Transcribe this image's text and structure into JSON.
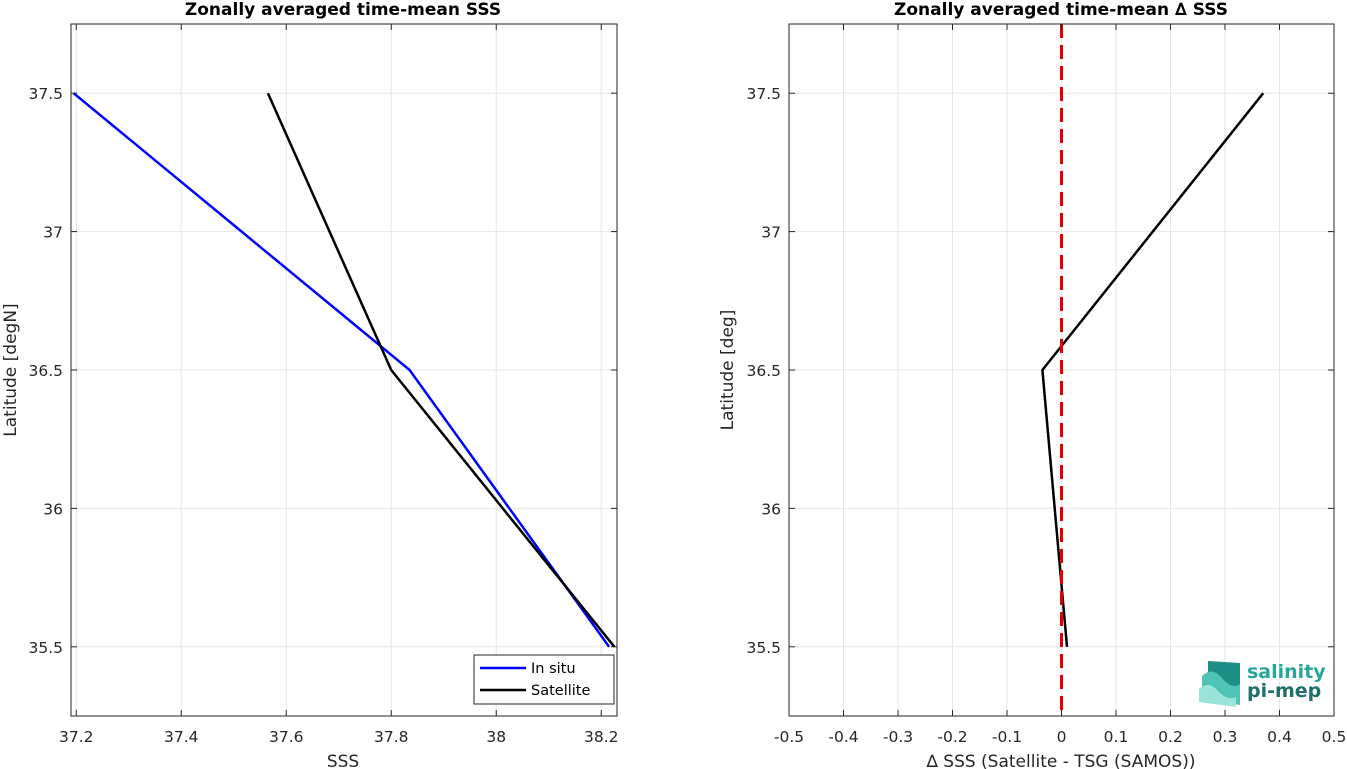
{
  "chart_data": [
    {
      "type": "line",
      "title": "Zonally averaged time-mean SSS",
      "xlabel": "SSS",
      "ylabel": "Latitude [degN]",
      "xlim": [
        37.19,
        38.23
      ],
      "ylim": [
        35.25,
        37.75
      ],
      "xticks": [
        37.2,
        37.4,
        37.6,
        37.8,
        38.0,
        38.2
      ],
      "xtick_labels": [
        "37.2",
        "37.4",
        "37.6",
        "37.8",
        "38",
        "38.2"
      ],
      "yticks": [
        35.5,
        36.0,
        36.5,
        37.0,
        37.5
      ],
      "ytick_labels": [
        "35.5",
        "36",
        "36.5",
        "37",
        "37.5"
      ],
      "grid": true,
      "legend_position": "bottom-right",
      "series": [
        {
          "name": "In situ",
          "color": "#0000ff",
          "points": [
            [
              37.195,
              37.5
            ],
            [
              37.835,
              36.5
            ],
            [
              38.215,
              35.5
            ]
          ]
        },
        {
          "name": "Satellite",
          "color": "#000000",
          "points": [
            [
              37.565,
              37.5
            ],
            [
              37.8,
              36.5
            ],
            [
              38.225,
              35.5
            ]
          ]
        }
      ]
    },
    {
      "type": "line",
      "title": "Zonally averaged time-mean ∆ SSS",
      "xlabel": "∆ SSS (Satellite - TSG (SAMOS))",
      "ylabel": "Latitude [deg]",
      "xlim": [
        -0.5,
        0.5
      ],
      "ylim": [
        35.25,
        37.75
      ],
      "xticks": [
        -0.5,
        -0.4,
        -0.3,
        -0.2,
        -0.1,
        0,
        0.1,
        0.2,
        0.3,
        0.4,
        0.5
      ],
      "xtick_labels": [
        "-0.5",
        "-0.4",
        "-0.3",
        "-0.2",
        "-0.1",
        "0",
        "0.1",
        "0.2",
        "0.3",
        "0.4",
        "0.5"
      ],
      "yticks": [
        35.5,
        36.0,
        36.5,
        37.0,
        37.5
      ],
      "ytick_labels": [
        "35.5",
        "36",
        "36.5",
        "37",
        "37.5"
      ],
      "grid": true,
      "reference_line": {
        "x": 0,
        "color": "#e00000",
        "style": "dashed"
      },
      "series": [
        {
          "color": "#000000",
          "points": [
            [
              0.37,
              37.5
            ],
            [
              -0.035,
              36.5
            ],
            [
              0.01,
              35.5
            ]
          ]
        }
      ]
    }
  ],
  "logo": {
    "line1": "salinity",
    "line2": "pi-mep"
  }
}
